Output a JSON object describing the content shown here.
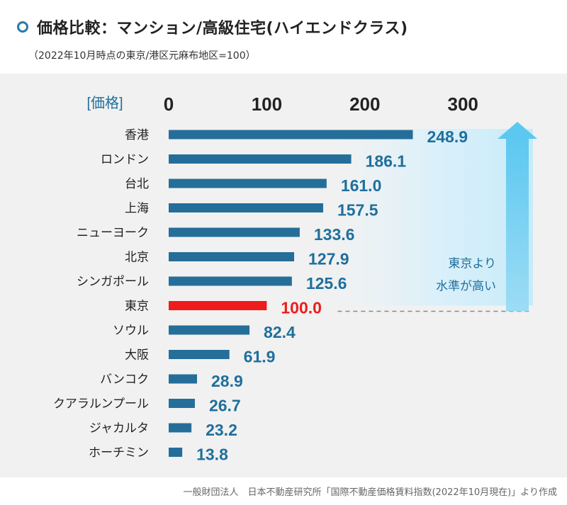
{
  "title": "価格比較：マンション/高級住宅(ハイエンドクラス)",
  "subtitle": "（2022年10月時点の東京/港区元麻布地区=100）",
  "footer": "一般財団法人　日本不動産研究所「国際不動産価格賃料指数(2022年10月現在)」より作成",
  "colors": {
    "bar": "#256e99",
    "highlight": "#ee1c1c",
    "label": "#1f6f9c",
    "arrow": "#5cc8f0"
  },
  "chart_data": {
    "type": "bar",
    "orientation": "horizontal",
    "axis_label": "[価格]",
    "ticks": [
      0,
      100,
      200,
      300
    ],
    "xlim": [
      0,
      350
    ],
    "categories": [
      "香港",
      "ロンドン",
      "台北",
      "上海",
      "ニューヨーク",
      "北京",
      "シンガポール",
      "東京",
      "ソウル",
      "大阪",
      "バンコク",
      "クアラルンプール",
      "ジャカルタ",
      "ホーチミン"
    ],
    "values": [
      248.9,
      186.1,
      161.0,
      157.5,
      133.6,
      127.9,
      125.6,
      100.0,
      82.4,
      61.9,
      28.9,
      26.7,
      23.2,
      13.8
    ],
    "value_labels": [
      "248.9",
      "186.1",
      "161.0",
      "157.5",
      "133.6",
      "127.9",
      "125.6",
      "100.0",
      "82.4",
      "61.9",
      "28.9",
      "26.7",
      "23.2",
      "13.8"
    ],
    "highlight_category": "東京",
    "annotation_lines": [
      "東京より",
      "水準が高い"
    ]
  }
}
